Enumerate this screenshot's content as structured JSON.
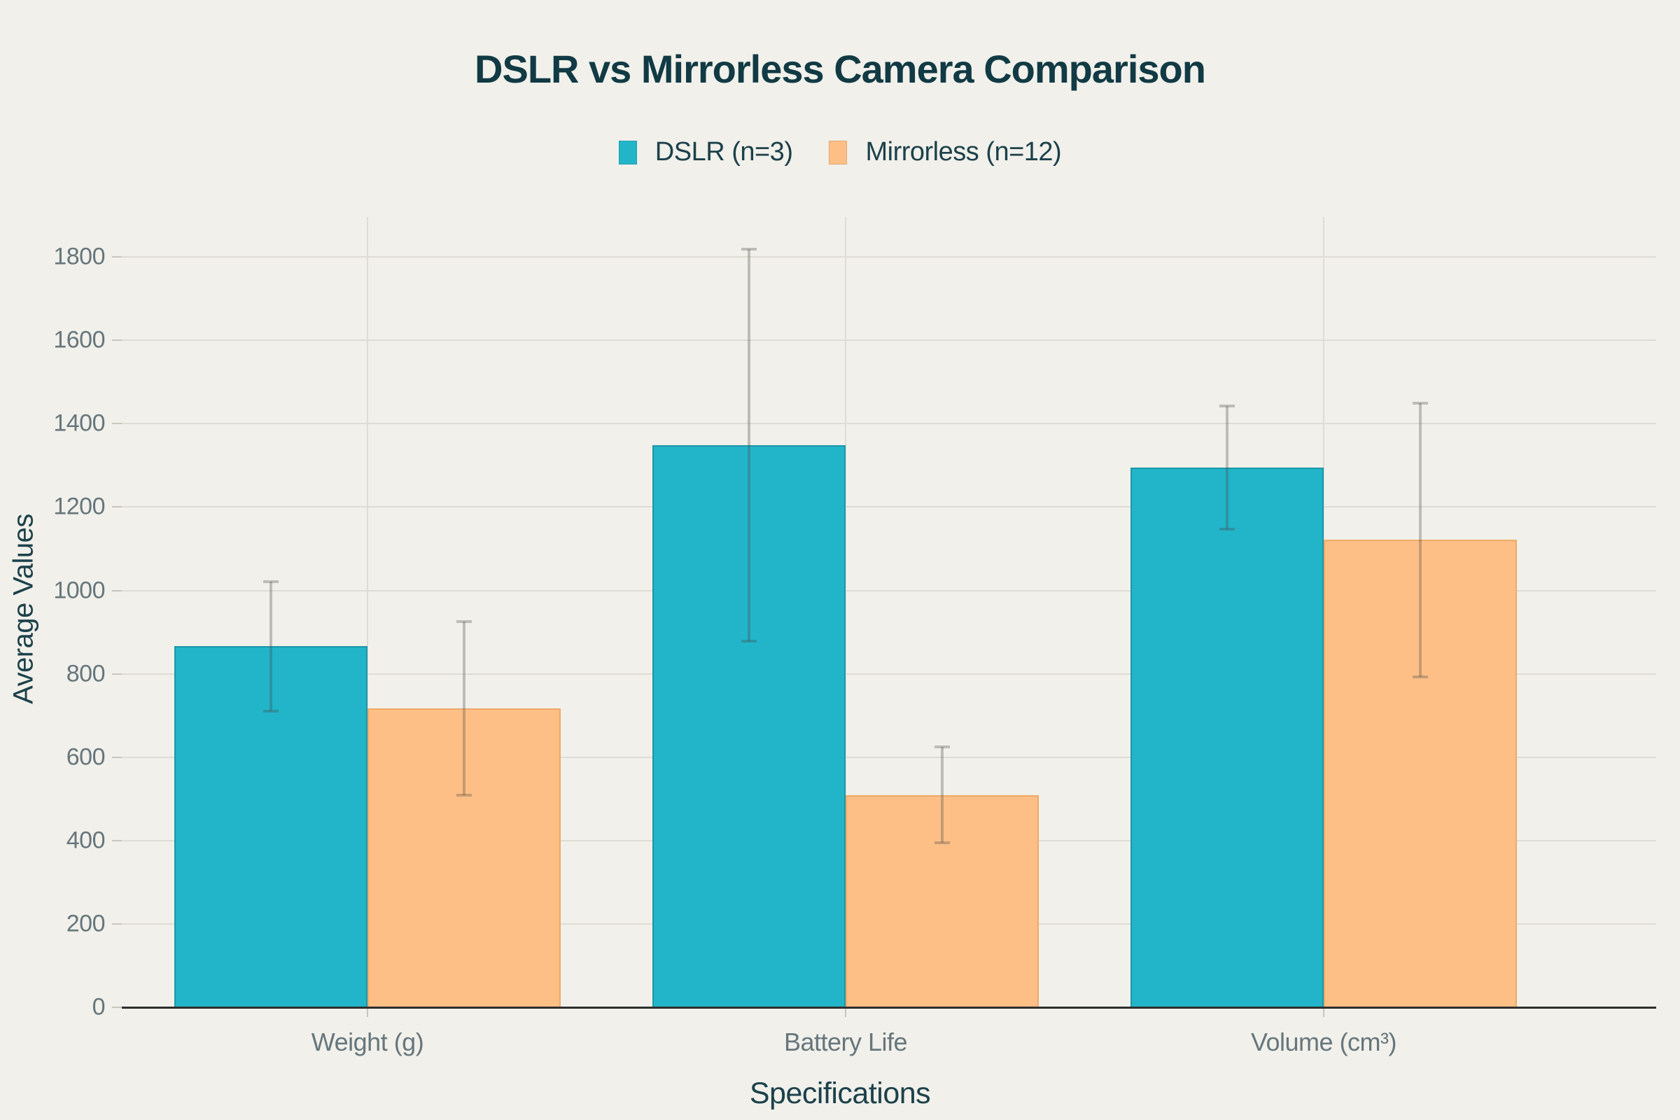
{
  "title": "DSLR vs Mirrorless Camera Comparison",
  "axis": {
    "x_title": "Specifications",
    "y_title": "Average Values"
  },
  "colors": {
    "background": "#F1F0EA",
    "title_text": "#113A44",
    "axis_title_text": "#1C414B",
    "tick_text": "#66767C",
    "gridline": "#DEDCD4",
    "baseline": "#2E2E2E",
    "error_bar": "rgba(68,68,68,0.30)",
    "dslr": "#22B5C9",
    "mirrorless": "#FDBF86"
  },
  "chart_data": {
    "type": "bar",
    "title": "DSLR vs Mirrorless Camera Comparison",
    "xlabel": "Specifications",
    "ylabel": "Average Values",
    "categories": [
      "Weight (g)",
      "Battery Life",
      "Volume (cm³)"
    ],
    "category_keys": [
      "weight-g",
      "battery-life",
      "volume-cm3"
    ],
    "series": [
      {
        "key": "dslr",
        "name": "DSLR (n=3)",
        "values": [
          866,
          1348,
          1295
        ],
        "errors": [
          155,
          470,
          148
        ],
        "color": "#22B5C9",
        "border_color": "#1B97A9"
      },
      {
        "key": "mirrorless",
        "name": "Mirrorless (n=12)",
        "values": [
          717,
          509,
          1121
        ],
        "errors": [
          208,
          115,
          329
        ],
        "color": "#FDBF86",
        "border_color": "#EDAA66"
      }
    ],
    "error_bars": true,
    "grid": true,
    "legend_position": "top-center",
    "ylim": [
      0,
      1900
    ],
    "yticks": [
      0,
      200,
      400,
      600,
      800,
      1000,
      1200,
      1400,
      1600,
      1800
    ]
  }
}
